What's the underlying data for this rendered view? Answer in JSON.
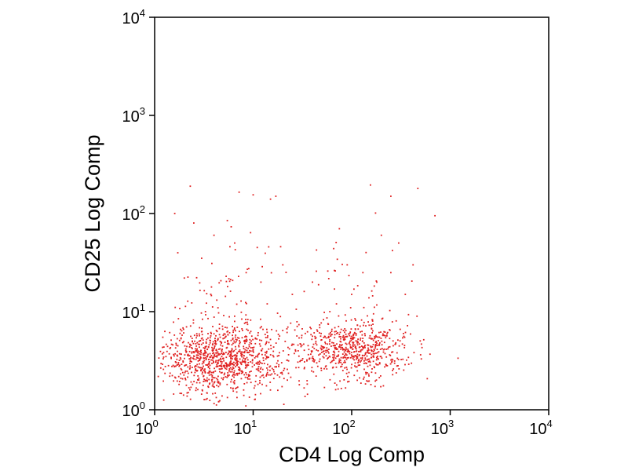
{
  "chart_data": {
    "type": "scatter",
    "xlabel": "CD4 Log Comp",
    "ylabel": "CD25 Log Comp",
    "x_scale": "log",
    "y_scale": "log",
    "xlim": [
      1,
      10000
    ],
    "ylim": [
      1,
      10000
    ],
    "x_ticks": [
      {
        "base": "10",
        "exp": "0"
      },
      {
        "base": "10",
        "exp": "1"
      },
      {
        "base": "10",
        "exp": "2"
      },
      {
        "base": "10",
        "exp": "3"
      },
      {
        "base": "10",
        "exp": "4"
      }
    ],
    "y_ticks": [
      {
        "base": "10",
        "exp": "0"
      },
      {
        "base": "10",
        "exp": "1"
      },
      {
        "base": "10",
        "exp": "2"
      },
      {
        "base": "10",
        "exp": "3"
      },
      {
        "base": "10",
        "exp": "4"
      }
    ],
    "grid": false,
    "legend": "none",
    "point_color": "#e02020",
    "clusters": [
      {
        "x_center": 5,
        "x_log_spread": 0.32,
        "y_center": 3.2,
        "y_log_spread": 0.17,
        "count": 1100
      },
      {
        "x_center": 100,
        "x_log_spread": 0.3,
        "y_center": 4.0,
        "y_log_spread": 0.15,
        "count": 700
      }
    ],
    "points": [
      [
        2.3,
        190
      ],
      [
        7.2,
        165
      ],
      [
        10,
        155
      ],
      [
        15,
        140
      ],
      [
        17,
        150
      ],
      [
        155,
        195
      ],
      [
        470,
        180
      ],
      [
        250,
        150
      ],
      [
        700,
        95
      ],
      [
        75,
        70
      ],
      [
        1.6,
        100
      ],
      [
        2.5,
        80
      ],
      [
        4,
        60
      ],
      [
        6.5,
        50
      ],
      [
        11,
        45
      ],
      [
        20,
        30
      ],
      [
        3,
        35
      ],
      [
        8.5,
        25
      ],
      [
        12,
        20
      ],
      [
        5.5,
        18
      ],
      [
        2,
        22
      ],
      [
        25,
        15
      ],
      [
        60,
        10
      ],
      [
        140,
        40
      ],
      [
        200,
        60
      ],
      [
        300,
        50
      ],
      [
        420,
        30
      ],
      [
        250,
        25
      ],
      [
        180,
        20
      ],
      [
        100,
        15
      ],
      [
        350,
        15
      ],
      [
        40,
        20
      ],
      [
        70,
        12
      ],
      [
        90,
        30
      ],
      [
        130,
        25
      ]
    ]
  }
}
